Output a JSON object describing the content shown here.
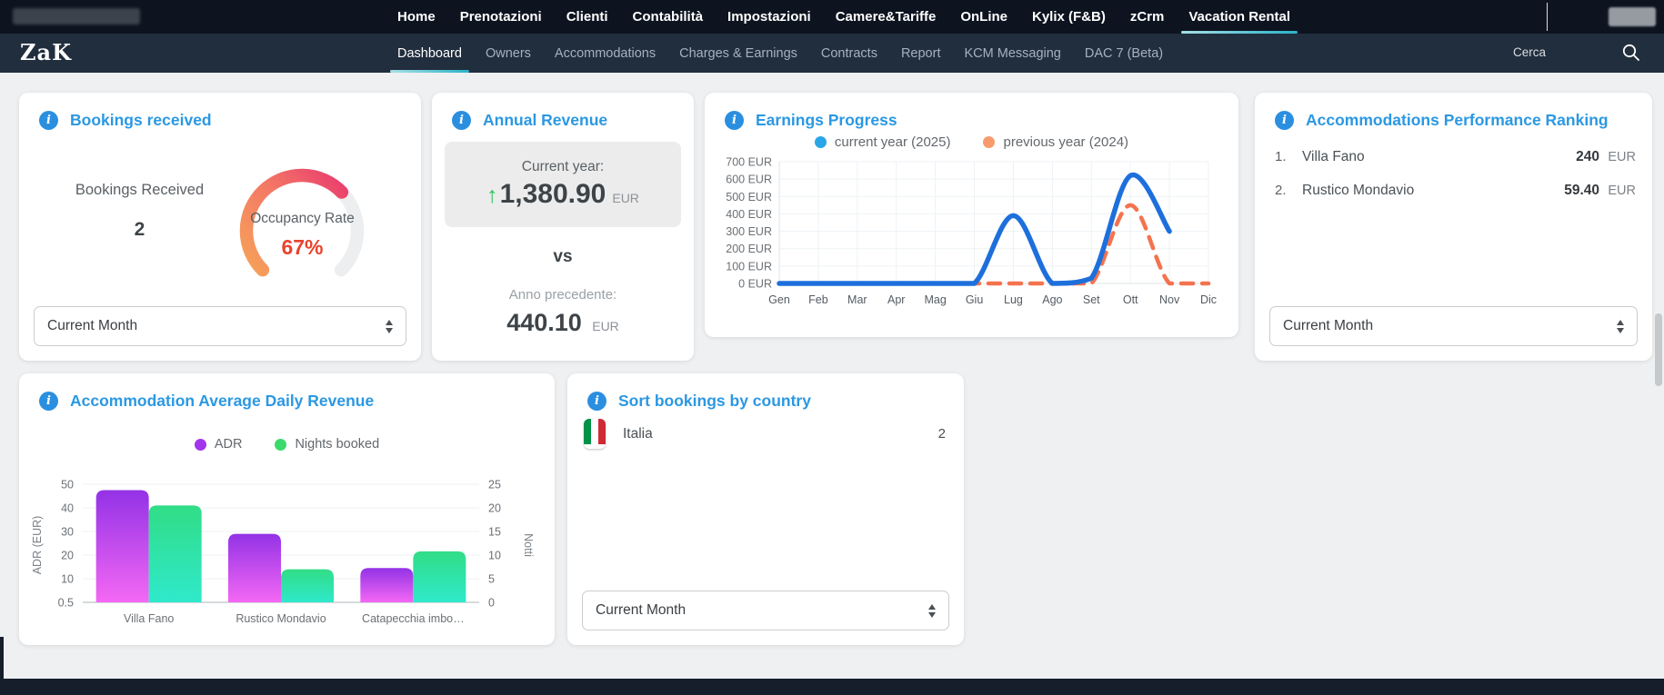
{
  "topnav": {
    "items": [
      "Home",
      "Prenotazioni",
      "Clienti",
      "Contabilità",
      "Impostazioni",
      "Camere&Tariffe",
      "OnLine",
      "Kylix (F&B)",
      "zCrm",
      "Vacation Rental"
    ],
    "active": "Vacation Rental"
  },
  "subnav": {
    "logo": "ZaK",
    "items": [
      "Dashboard",
      "Owners",
      "Accommodations",
      "Charges & Earnings",
      "Contracts",
      "Report",
      "KCM Messaging",
      "DAC 7 (Beta)"
    ],
    "active": "Dashboard",
    "search_label": "Cerca"
  },
  "theme": {
    "accent_blue": "#2b98e2",
    "nav_dark": "#0d1420",
    "subnav_dark": "#212e3e",
    "active_tab_underline": "#2ab3c8",
    "gauge_value_color": "#e8432e",
    "positive_green": "#2dc15c"
  },
  "cards": {
    "bookings": {
      "title": "Bookings received",
      "metric_label": "Bookings Received",
      "metric_value": "2",
      "gauge_label": "Occupancy Rate",
      "gauge_value": "67%",
      "gauge_percent": 67,
      "period_select": "Current Month"
    },
    "annual_revenue": {
      "title": "Annual Revenue",
      "current_label": "Current year:",
      "current_value": "1,380.90",
      "current_currency": "EUR",
      "vs_label": "vs",
      "previous_label": "Anno precedente:",
      "previous_value": "440.10",
      "previous_currency": "EUR"
    },
    "earnings_progress": {
      "title": "Earnings Progress"
    },
    "performance_ranking": {
      "title": "Accommodations Performance Ranking",
      "rows": [
        {
          "rank": "1.",
          "name": "Villa Fano",
          "value": "240",
          "currency": "EUR"
        },
        {
          "rank": "2.",
          "name": "Rustico Mondavio",
          "value": "59.40",
          "currency": "EUR"
        }
      ],
      "period_select": "Current Month"
    },
    "adr": {
      "title": "Accommodation Average Daily Revenue"
    },
    "bookings_by_country": {
      "title": "Sort bookings by country",
      "rows": [
        {
          "country": "Italia",
          "flag": "italy-flag",
          "value": "2"
        }
      ],
      "period_select": "Current Month"
    }
  },
  "chart_data": [
    {
      "type": "line",
      "title": "Earnings Progress",
      "x": [
        "Gen",
        "Feb",
        "Mar",
        "Apr",
        "Mag",
        "Giu",
        "Lug",
        "Ago",
        "Set",
        "Ott",
        "Nov",
        "Dic"
      ],
      "series": [
        {
          "name": "current year (2025)",
          "color": "#1d6fdc",
          "legend_color": "#2aa6e8",
          "style": "solid",
          "values": [
            0,
            0,
            0,
            0,
            0,
            0,
            390,
            0,
            30,
            620,
            300,
            null
          ]
        },
        {
          "name": "previous year (2024)",
          "color": "#f4734e",
          "legend_color": "#f89b6c",
          "style": "dashed",
          "values": [
            0,
            0,
            0,
            0,
            0,
            0,
            0,
            0,
            0,
            450,
            0,
            0
          ]
        }
      ],
      "ylim": [
        0,
        700
      ],
      "ytick_step": 100,
      "ytick_suffix": " EUR",
      "grid": true,
      "legend_position": "top"
    },
    {
      "type": "bar",
      "title": "Accommodation Average Daily Revenue",
      "categories": [
        "Villa Fano",
        "Rustico Mondavio",
        "Catapecchia imbo…"
      ],
      "series": [
        {
          "name": "ADR",
          "axis": "left",
          "gradient": [
            "#9332e6",
            "#f468f4"
          ],
          "legend_color": "#a234ec",
          "values": [
            47.5,
            29,
            14.5
          ]
        },
        {
          "name": "Nights booked",
          "axis": "right",
          "gradient": [
            "#31dd86",
            "#2fe9cb"
          ],
          "legend_color": "#3cd96d",
          "values": [
            20.5,
            7,
            10.8
          ]
        }
      ],
      "left_axis": {
        "label": "ADR (EUR)",
        "ticks": [
          "50",
          "40",
          "30",
          "20",
          "10",
          "0.5"
        ],
        "max": 50
      },
      "right_axis": {
        "label": "Notti",
        "ticks": [
          "25",
          "20",
          "15",
          "10",
          "5",
          "0"
        ],
        "max": 25
      },
      "grid": true,
      "legend_position": "top"
    }
  ]
}
